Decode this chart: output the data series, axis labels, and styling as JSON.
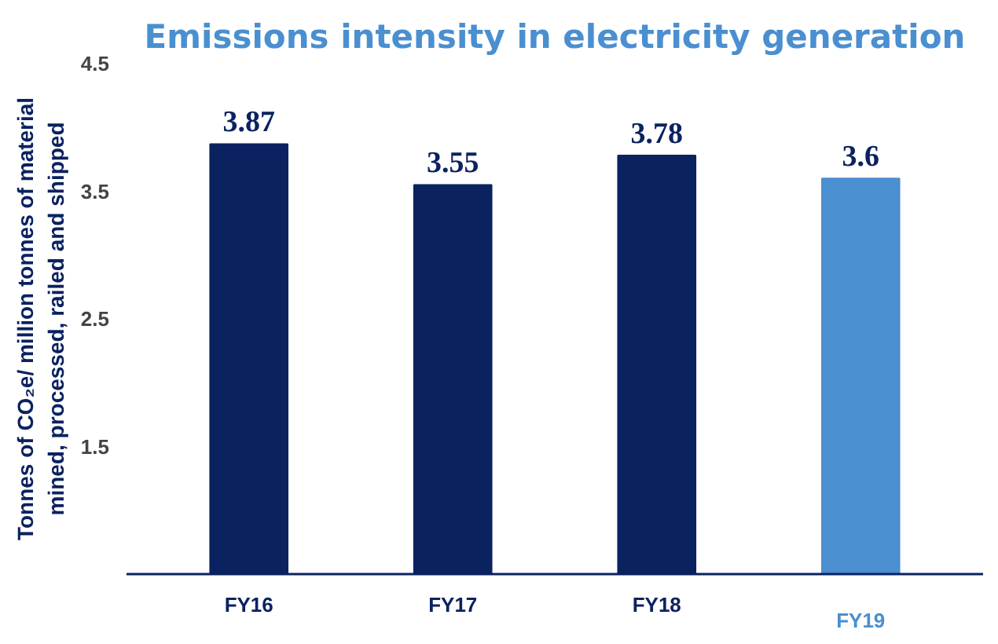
{
  "chart_data": {
    "type": "bar",
    "title": "Emissions intensity in electricity generation",
    "ylabel": "Tonnes of CO₂e/ million tonnes of material\nmined, processed, railed and shipped",
    "categories": [
      "FY16",
      "FY17",
      "FY18",
      "FY19"
    ],
    "values": [
      3.87,
      3.55,
      3.78,
      3.6
    ],
    "colors": [
      "#0b2260",
      "#0b2260",
      "#0b2260",
      "#4a8fd0"
    ],
    "ylim": [
      0.5,
      4.5
    ],
    "yticks": [
      1.5,
      2.5,
      3.5,
      4.5
    ],
    "grid": false,
    "data_labels": true
  }
}
